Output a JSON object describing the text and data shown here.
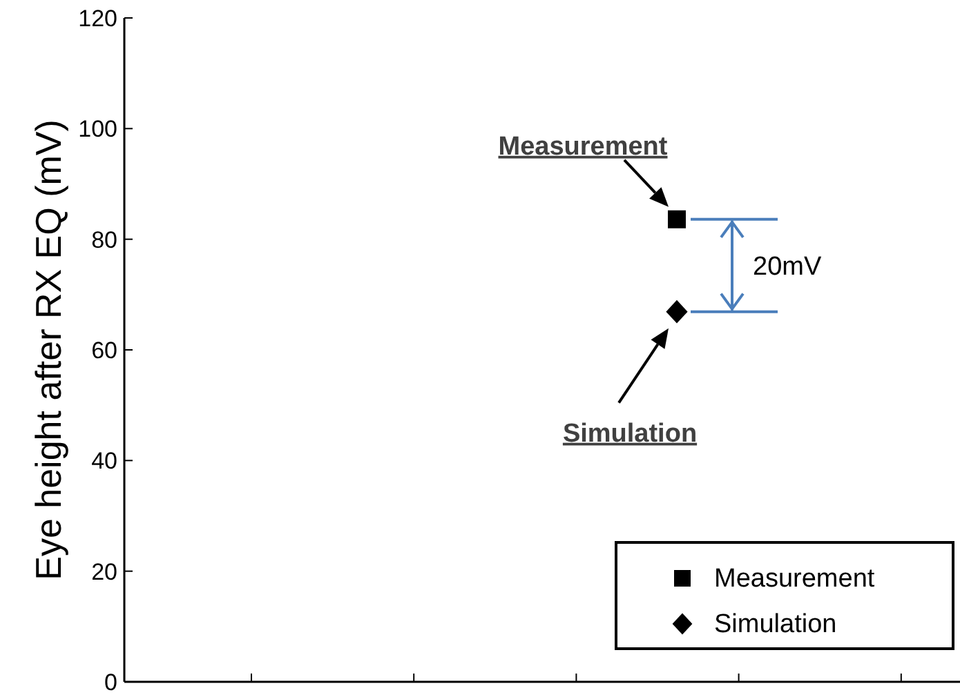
{
  "chart_data": {
    "type": "scatter",
    "ylabel": "Eye height after RX EQ (mV)",
    "categories": [
      null
    ],
    "ylim": [
      0,
      120
    ],
    "yticks": [
      0,
      20,
      40,
      60,
      80,
      100,
      120
    ],
    "tick_labels": "y",
    "grid": false,
    "legend": "bottom right",
    "series": [
      {
        "name": "Measurement",
        "color": "#000000",
        "marker": "square",
        "values": [
          83.6
        ]
      },
      {
        "name": "Simulation",
        "color": "#000000",
        "marker": "diamond",
        "values": [
          66.9
        ]
      }
    ],
    "annotations": [
      "Measurement",
      "Simulation",
      "20mV"
    ]
  }
}
